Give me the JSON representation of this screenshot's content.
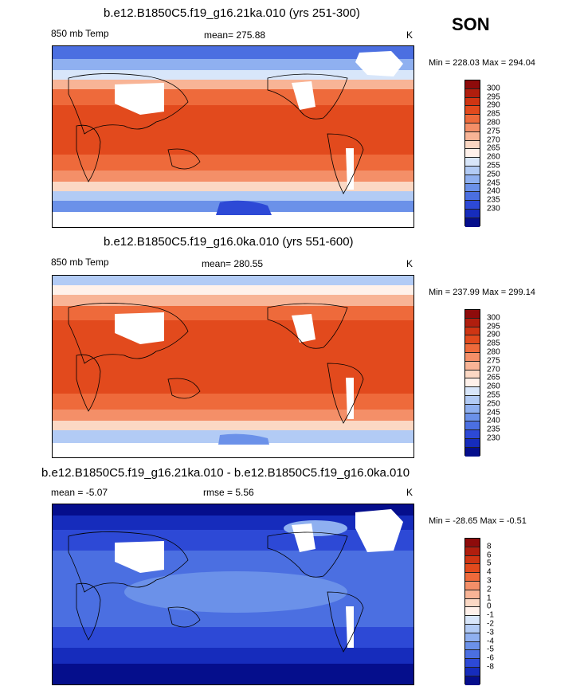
{
  "season": "SON",
  "panels": [
    {
      "title": "b.e12.B1850C5.f19_g16.21ka.010 (yrs 251-300)",
      "left_label": "850 mb Temp",
      "center_label": "mean= 275.88",
      "right_label": "",
      "units": "K",
      "minmax": "Min = 228.03 Max = 294.04",
      "colorbar_labels": [
        "300",
        "295",
        "290",
        "285",
        "280",
        "275",
        "270",
        "265",
        "260",
        "255",
        "250",
        "245",
        "240",
        "235",
        "230"
      ],
      "colorbar_colors": [
        "#8e0b0b",
        "#b01e0e",
        "#cf3513",
        "#e24a1d",
        "#ee6a3b",
        "#f48f68",
        "#f8b496",
        "#fbd8c4",
        "#fff1ea",
        "#d8e6fa",
        "#b2cbf5",
        "#8fb0f0",
        "#6b91e9",
        "#4b6fe1",
        "#2d49d6",
        "#162cbc",
        "#050e8c"
      ]
    },
    {
      "title": "b.e12.B1850C5.f19_g16.0ka.010 (yrs 551-600)",
      "left_label": "850 mb Temp",
      "center_label": "mean= 280.55",
      "right_label": "",
      "units": "K",
      "minmax": "Min = 237.99 Max = 299.14",
      "colorbar_labels": [
        "300",
        "295",
        "290",
        "285",
        "280",
        "275",
        "270",
        "265",
        "260",
        "255",
        "250",
        "245",
        "240",
        "235",
        "230"
      ],
      "colorbar_colors": [
        "#8e0b0b",
        "#b01e0e",
        "#cf3513",
        "#e24a1d",
        "#ee6a3b",
        "#f48f68",
        "#f8b496",
        "#fbd8c4",
        "#fff1ea",
        "#d8e6fa",
        "#b2cbf5",
        "#8fb0f0",
        "#6b91e9",
        "#4b6fe1",
        "#2d49d6",
        "#162cbc",
        "#050e8c"
      ]
    },
    {
      "title": "b.e12.B1850C5.f19_g16.21ka.010 - b.e12.B1850C5.f19_g16.0ka.010",
      "left_label": "mean =  -5.07",
      "center_label": "rmse =   5.56",
      "right_label": "",
      "units": "K",
      "minmax": "Min = -28.65 Max =  -0.51",
      "colorbar_labels": [
        "8",
        "6",
        "5",
        "4",
        "3",
        "2",
        "1",
        "0",
        "-1",
        "-2",
        "-3",
        "-4",
        "-5",
        "-6",
        "-8"
      ],
      "colorbar_colors": [
        "#8e0b0b",
        "#b01e0e",
        "#cf3513",
        "#e24a1d",
        "#ee6a3b",
        "#f48f68",
        "#f8b496",
        "#fbd8c4",
        "#fff1ea",
        "#d8e6fa",
        "#b2cbf5",
        "#8fb0f0",
        "#6b91e9",
        "#4b6fe1",
        "#2d49d6",
        "#162cbc",
        "#050e8c"
      ]
    }
  ]
}
